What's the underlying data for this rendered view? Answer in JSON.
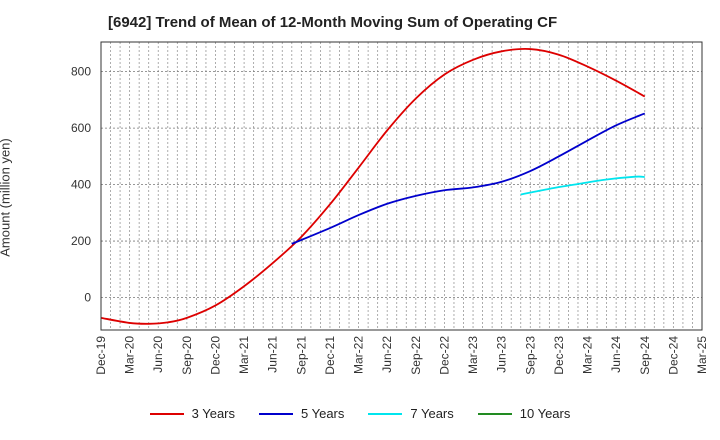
{
  "chart_data": {
    "type": "line",
    "title": "[6942]  Trend of Mean of 12-Month Moving Sum of Operating CF",
    "xlabel": "",
    "ylabel": "Amount (million yen)",
    "ylim": [
      -115,
      905
    ],
    "yticks": [
      0,
      200,
      400,
      600,
      800
    ],
    "grid": true,
    "x_index_range": [
      0,
      63
    ],
    "categories": [
      "Dec-19",
      "Mar-20",
      "Jun-20",
      "Sep-20",
      "Dec-20",
      "Mar-21",
      "Jun-21",
      "Sep-21",
      "Dec-21",
      "Mar-22",
      "Jun-22",
      "Sep-22",
      "Dec-22",
      "Mar-23",
      "Jun-23",
      "Sep-23",
      "Dec-23",
      "Mar-24",
      "Jun-24",
      "Sep-24",
      "Dec-24",
      "Mar-25"
    ],
    "series": [
      {
        "name": "3 Years",
        "color": "#dd0000",
        "points": [
          [
            0,
            -72
          ],
          [
            3,
            -90
          ],
          [
            5,
            -93
          ],
          [
            7,
            -88
          ],
          [
            9,
            -72
          ],
          [
            12,
            -28
          ],
          [
            15,
            40
          ],
          [
            18,
            122
          ],
          [
            21,
            215
          ],
          [
            24,
            330
          ],
          [
            27,
            460
          ],
          [
            30,
            592
          ],
          [
            33,
            705
          ],
          [
            36,
            790
          ],
          [
            39,
            842
          ],
          [
            42,
            872
          ],
          [
            45,
            880
          ],
          [
            48,
            860
          ],
          [
            51,
            818
          ],
          [
            54,
            768
          ],
          [
            57,
            712
          ]
        ]
      },
      {
        "name": "5 Years",
        "color": "#0000cc",
        "points": [
          [
            20,
            190
          ],
          [
            24,
            246
          ],
          [
            27,
            292
          ],
          [
            30,
            332
          ],
          [
            33,
            360
          ],
          [
            36,
            380
          ],
          [
            39,
            390
          ],
          [
            42,
            410
          ],
          [
            45,
            448
          ],
          [
            48,
            500
          ],
          [
            51,
            556
          ],
          [
            54,
            610
          ],
          [
            57,
            652
          ]
        ]
      },
      {
        "name": "7 Years",
        "color": "#00e5ee",
        "points": [
          [
            44,
            365
          ],
          [
            47,
            385
          ],
          [
            50,
            402
          ],
          [
            53,
            418
          ],
          [
            56,
            428
          ],
          [
            57,
            427
          ]
        ]
      },
      {
        "name": "10 Years",
        "color": "#228b22",
        "points": []
      }
    ]
  }
}
